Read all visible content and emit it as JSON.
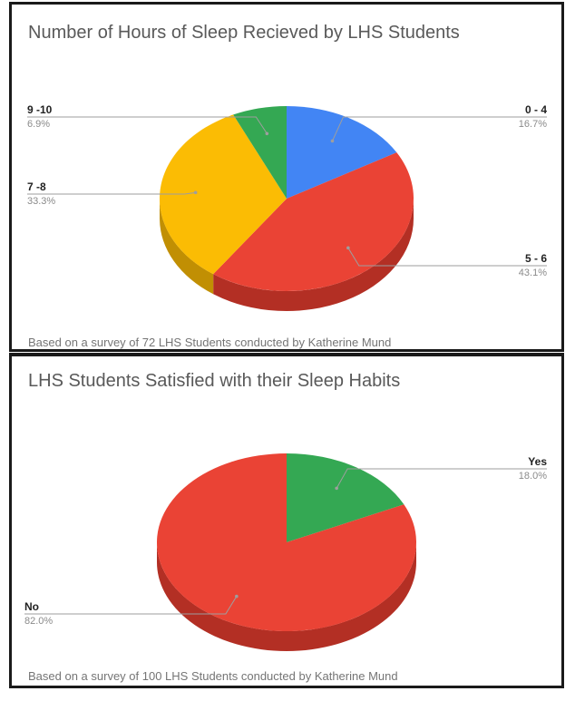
{
  "chart_data": [
    {
      "type": "pie",
      "title": "Number of Hours of Sleep Recieved by LHS Students",
      "footnote": "Based on a survey of 72 LHS Students conducted by Katherine Mund",
      "slices": [
        {
          "label": "0 - 4",
          "value": 16.7,
          "display": "16.7%",
          "color": "#4285F4",
          "side_color": "#2f63c2"
        },
        {
          "label": "5 - 6",
          "value": 43.1,
          "display": "43.1%",
          "color": "#EA4335",
          "side_color": "#b32f24"
        },
        {
          "label": "7 -8",
          "value": 33.3,
          "display": "33.3%",
          "color": "#FBBC04",
          "side_color": "#c18f03"
        },
        {
          "label": "9 -10",
          "value": 6.9,
          "display": "6.9%",
          "color": "#34A853",
          "side_color": "#23793a"
        }
      ],
      "legend": "none",
      "style": "3d"
    },
    {
      "type": "pie",
      "title": "LHS Students Satisfied with their Sleep Habits",
      "footnote": "Based on a survey of 100 LHS Students conducted by Katherine Mund",
      "slices": [
        {
          "label": "Yes",
          "value": 18.0,
          "display": "18.0%",
          "color": "#34A853",
          "side_color": "#23793a"
        },
        {
          "label": "No",
          "value": 82.0,
          "display": "82.0%",
          "color": "#EA4335",
          "side_color": "#b32f24"
        }
      ],
      "legend": "none",
      "style": "3d"
    }
  ]
}
